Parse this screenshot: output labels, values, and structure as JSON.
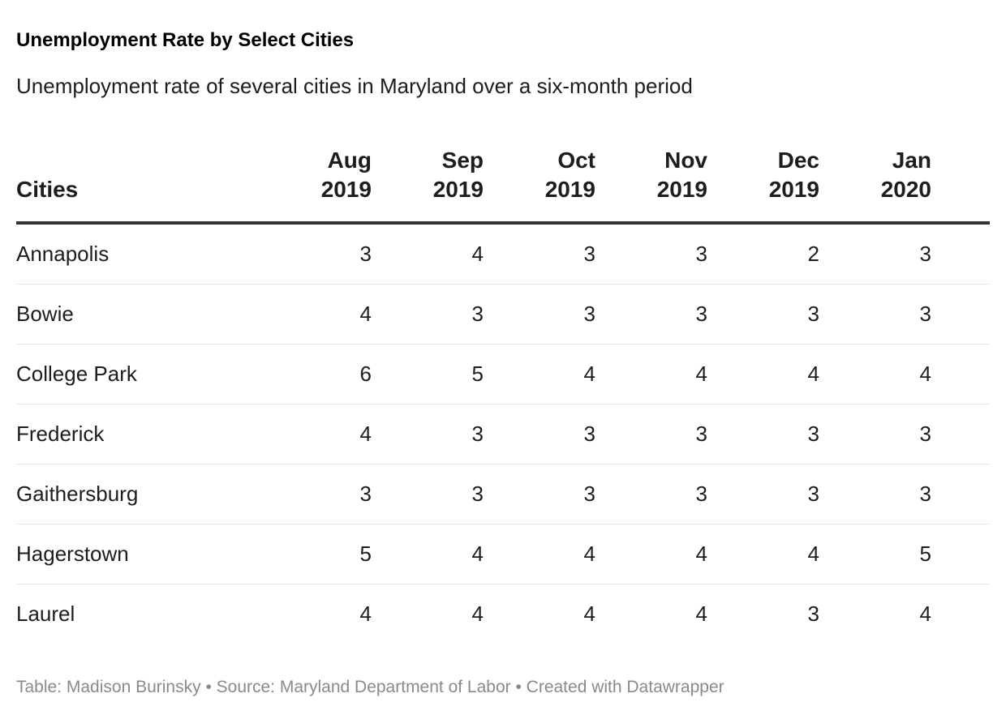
{
  "title": "Unemployment Rate by Select Cities",
  "subtitle": "Unemployment rate of several cities in Maryland over a six-month period",
  "colors": {
    "text": "#1d1d1d",
    "title": "#000000",
    "header_rule": "#333333",
    "row_divider": "#e4e4e4",
    "footer": "#8a8a8a"
  },
  "chart_data": {
    "type": "table",
    "columns": [
      {
        "label": "Cities"
      },
      {
        "line1": "Aug",
        "line2": "2019"
      },
      {
        "line1": "Sep",
        "line2": "2019"
      },
      {
        "line1": "Oct",
        "line2": "2019"
      },
      {
        "line1": "Nov",
        "line2": "2019"
      },
      {
        "line1": "Dec",
        "line2": "2019"
      },
      {
        "line1": "Jan",
        "line2": "2020"
      }
    ],
    "rows": [
      {
        "city": "Annapolis",
        "values": [
          "3",
          "4",
          "3",
          "3",
          "2",
          "3"
        ]
      },
      {
        "city": "Bowie",
        "values": [
          "4",
          "3",
          "3",
          "3",
          "3",
          "3"
        ]
      },
      {
        "city": "College Park",
        "values": [
          "6",
          "5",
          "4",
          "4",
          "4",
          "4"
        ]
      },
      {
        "city": "Frederick",
        "values": [
          "4",
          "3",
          "3",
          "3",
          "3",
          "3"
        ]
      },
      {
        "city": "Gaithersburg",
        "values": [
          "3",
          "3",
          "3",
          "3",
          "3",
          "3"
        ]
      },
      {
        "city": "Hagerstown",
        "values": [
          "5",
          "4",
          "4",
          "4",
          "4",
          "5"
        ]
      },
      {
        "city": "Laurel",
        "values": [
          "4",
          "4",
          "4",
          "4",
          "3",
          "4"
        ]
      }
    ]
  },
  "footer": "Table: Madison Burinsky • Source: Maryland Department of Labor • Created with Datawrapper"
}
